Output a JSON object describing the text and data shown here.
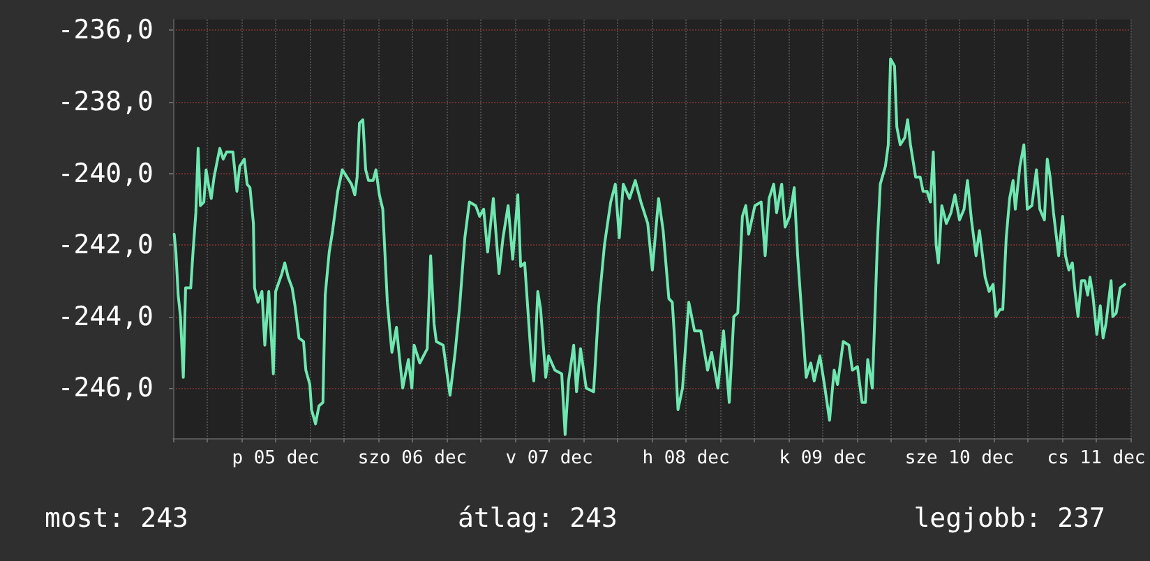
{
  "chart_data": {
    "type": "line",
    "color": "#6ee7b0",
    "grid": true,
    "marker": "none",
    "line_style": "solid",
    "xlim": [
      "--12-04T18:00",
      "--12-11T18:00"
    ],
    "ylim": [
      -247.4,
      -235.7
    ],
    "xticks": [
      {
        "value": "--12-04T18:00",
        "label": null
      },
      {
        "value": "--12-05T00:00",
        "label": null
      },
      {
        "value": "--12-05T06:00",
        "label": null
      },
      {
        "value": "--12-05T12:00",
        "label": "p 05 dec"
      },
      {
        "value": "--12-05T18:00",
        "label": null
      },
      {
        "value": "--12-06T00:00",
        "label": null
      },
      {
        "value": "--12-06T06:00",
        "label": null
      },
      {
        "value": "--12-06T12:00",
        "label": "szo 06 dec"
      },
      {
        "value": "--12-06T18:00",
        "label": null
      },
      {
        "value": "--12-07T00:00",
        "label": null
      },
      {
        "value": "--12-07T06:00",
        "label": null
      },
      {
        "value": "--12-07T12:00",
        "label": "v 07 dec"
      },
      {
        "value": "--12-07T18:00",
        "label": null
      },
      {
        "value": "--12-08T00:00",
        "label": null
      },
      {
        "value": "--12-08T06:00",
        "label": null
      },
      {
        "value": "--12-08T12:00",
        "label": "h 08 dec"
      },
      {
        "value": "--12-08T18:00",
        "label": null
      },
      {
        "value": "--12-09T00:00",
        "label": null
      },
      {
        "value": "--12-09T06:00",
        "label": null
      },
      {
        "value": "--12-09T12:00",
        "label": "k 09 dec"
      },
      {
        "value": "--12-09T18:00",
        "label": null
      },
      {
        "value": "--12-10T00:00",
        "label": null
      },
      {
        "value": "--12-10T06:00",
        "label": null
      },
      {
        "value": "--12-10T12:00",
        "label": "sze 10 dec"
      },
      {
        "value": "--12-10T18:00",
        "label": null
      },
      {
        "value": "--12-11T00:00",
        "label": null
      },
      {
        "value": "--12-11T06:00",
        "label": null
      },
      {
        "value": "--12-11T12:00",
        "label": "cs 11 dec"
      },
      {
        "value": "--12-11T18:00",
        "label": null
      }
    ],
    "yticks": [
      {
        "value": -236,
        "label": "-236,0"
      },
      {
        "value": -238,
        "label": "-238,0"
      },
      {
        "value": -240,
        "label": "-240,0"
      },
      {
        "value": -242,
        "label": "-242,0"
      },
      {
        "value": -244,
        "label": "-244,0"
      },
      {
        "value": -246,
        "label": "-246,0"
      }
    ],
    "x": [
      "--12-04T18:12",
      "--12-04T18:30",
      "--12-04T18:54",
      "--12-04T19:18",
      "--12-04T19:48",
      "--12-04T20:12",
      "--12-04T21:06",
      "--12-04T21:30",
      "--12-04T22:00",
      "--12-04T22:24",
      "--12-04T22:48",
      "--12-04T23:24",
      "--12-04T23:48",
      "--12-05T00:12",
      "--12-05T00:42",
      "--12-05T01:12",
      "--12-05T02:12",
      "--12-05T02:48",
      "--12-05T03:24",
      "--12-05T04:30",
      "--12-05T05:12",
      "--12-05T05:42",
      "--12-05T06:30",
      "--12-05T07:00",
      "--12-05T07:30",
      "--12-05T08:06",
      "--12-05T08:18",
      "--12-05T08:54",
      "--12-05T09:36",
      "--12-05T10:06",
      "--12-05T10:48",
      "--12-05T11:36",
      "--12-05T12:00",
      "--12-05T13:06",
      "--12-05T13:36",
      "--12-05T14:12",
      "--12-05T14:54",
      "--12-05T15:24",
      "--12-05T16:06",
      "--12-05T16:54",
      "--12-05T17:18",
      "--12-05T18:00",
      "--12-05T18:18",
      "--12-05T19:00",
      "--12-05T19:36",
      "--12-05T20:18",
      "--12-05T20:42",
      "--12-05T21:24",
      "--12-05T22:00",
      "--12-05T22:54",
      "--12-05T23:42",
      "--12-06T00:30",
      "--12-06T01:18",
      "--12-06T01:54",
      "--12-06T02:18",
      "--12-06T02:42",
      "--12-06T03:18",
      "--12-06T03:48",
      "--12-06T04:18",
      "--12-06T05:06",
      "--12-06T05:36",
      "--12-06T06:12",
      "--12-06T06:48",
      "--12-06T07:36",
      "--12-06T08:24",
      "--12-06T09:12",
      "--12-06T09:42",
      "--12-06T10:18",
      "--12-06T11:18",
      "--12-06T11:54",
      "--12-06T12:18",
      "--12-06T13:18",
      "--12-06T14:36",
      "--12-06T15:12",
      "--12-06T15:48",
      "--12-06T16:12",
      "--12-06T17:24",
      "--12-06T18:36",
      "--12-06T19:30",
      "--12-06T20:18",
      "--12-06T21:12",
      "--12-06T22:00",
      "--12-06T23:06",
      "--12-06T23:48",
      "--12-07T00:30",
      "--12-07T01:12",
      "--12-07T02:12",
      "--12-07T03:12",
      "--12-07T03:54",
      "--12-07T04:48",
      "--12-07T05:36",
      "--12-07T06:30",
      "--12-07T07:00",
      "--12-07T07:42",
      "--12-07T08:54",
      "--12-07T09:18",
      "--12-07T10:00",
      "--12-07T10:30",
      "--12-07T11:24",
      "--12-07T11:54",
      "--12-07T13:00",
      "--12-07T14:12",
      "--12-07T14:48",
      "--12-07T15:24",
      "--12-07T16:18",
      "--12-07T16:48",
      "--12-07T17:30",
      "--12-07T18:30",
      "--12-07T19:48",
      "--12-07T20:42",
      "--12-07T21:42",
      "--12-07T22:48",
      "--12-07T23:36",
      "--12-08T00:18",
      "--12-08T01:00",
      "--12-08T02:06",
      "--12-08T03:06",
      "--12-08T04:06",
      "--12-08T05:18",
      "--12-08T06:06",
      "--12-08T07:12",
      "--12-08T08:00",
      "--12-08T09:00",
      "--12-08T09:36",
      "--12-08T10:00",
      "--12-08T10:36",
      "--12-08T11:24",
      "--12-08T12:30",
      "--12-08T13:30",
      "--12-08T14:36",
      "--12-08T15:48",
      "--12-08T16:30",
      "--12-08T17:36",
      "--12-08T18:36",
      "--12-08T19:36",
      "--12-08T20:24",
      "--12-08T21:06",
      "--12-08T21:54",
      "--12-08T22:30",
      "--12-08T23:00",
      "--12-09T00:06",
      "--12-09T01:12",
      "--12-09T01:54",
      "--12-09T02:36",
      "--12-09T03:24",
      "--12-09T03:54",
      "--12-09T04:48",
      "--12-09T05:24",
      "--12-09T06:12",
      "--12-09T07:00",
      "--12-09T07:36",
      "--12-09T08:42",
      "--12-09T09:06",
      "--12-09T09:54",
      "--12-09T10:30",
      "--12-09T11:30",
      "--12-09T12:18",
      "--12-09T13:12",
      "--12-09T14:00",
      "--12-09T14:36",
      "--12-09T15:36",
      "--12-09T16:36",
      "--12-09T17:12",
      "--12-09T18:06",
      "--12-09T18:54",
      "--12-09T19:30",
      "--12-09T19:54",
      "--12-09T20:42",
      "--12-09T21:06",
      "--12-09T21:36",
      "--12-09T22:06",
      "--12-09T23:00",
      "--12-09T23:30",
      "--12-09T23:54",
      "--12-10T00:36",
      "--12-10T01:00",
      "--12-10T01:36",
      "--12-10T02:24",
      "--12-10T02:54",
      "--12-10T03:24",
      "--12-10T04:18",
      "--12-10T05:06",
      "--12-10T05:36",
      "--12-10T06:18",
      "--12-10T06:54",
      "--12-10T07:24",
      "--12-10T07:54",
      "--12-10T08:18",
      "--12-10T08:54",
      "--12-10T09:42",
      "--12-10T10:30",
      "--12-10T11:12",
      "--12-10T12:00",
      "--12-10T12:48",
      "--12-10T13:24",
      "--12-10T14:06",
      "--12-10T14:54",
      "--12-10T15:30",
      "--12-10T16:30",
      "--12-10T17:12",
      "--12-10T17:54",
      "--12-10T18:24",
      "--12-10T19:06",
      "--12-10T19:36",
      "--12-10T20:12",
      "--12-10T20:48",
      "--12-10T21:24",
      "--12-10T21:48",
      "--12-10T22:36",
      "--12-10T23:18",
      "--12-10T23:54",
      "--12-11T00:42",
      "--12-11T01:30",
      "--12-11T02:06",
      "--12-11T02:54",
      "--12-11T03:24",
      "--12-11T03:54",
      "--12-11T04:30",
      "--12-11T05:24",
      "--12-11T06:06",
      "--12-11T06:36",
      "--12-11T07:12",
      "--12-11T07:48",
      "--12-11T08:12",
      "--12-11T08:48",
      "--12-11T09:24",
      "--12-11T10:00",
      "--12-11T10:30",
      "--12-11T10:54",
      "--12-11T11:24",
      "--12-11T12:06",
      "--12-11T12:42",
      "--12-11T13:12",
      "--12-11T13:42",
      "--12-11T14:36",
      "--12-11T14:54",
      "--12-11T15:30",
      "--12-11T16:12",
      "--12-11T17:00"
    ],
    "values": [
      -241.7,
      -242.2,
      -243.4,
      -244.0,
      -245.7,
      -243.2,
      -243.2,
      -242.2,
      -241.1,
      -239.3,
      -240.9,
      -240.8,
      -239.9,
      -240.3,
      -240.7,
      -240.1,
      -239.3,
      -239.6,
      -239.4,
      -239.4,
      -240.5,
      -239.8,
      -239.6,
      -240.3,
      -240.4,
      -241.4,
      -243.2,
      -243.6,
      -243.3,
      -244.8,
      -243.3,
      -245.6,
      -243.3,
      -242.8,
      -242.5,
      -242.9,
      -243.2,
      -243.7,
      -244.6,
      -244.7,
      -245.5,
      -245.9,
      -246.6,
      -247.0,
      -246.5,
      -246.4,
      -243.4,
      -242.2,
      -241.6,
      -240.5,
      -239.9,
      -240.1,
      -240.3,
      -240.6,
      -240.1,
      -238.6,
      -238.5,
      -239.9,
      -240.2,
      -240.2,
      -239.9,
      -240.6,
      -241.0,
      -243.6,
      -245.0,
      -244.3,
      -245.1,
      -246.0,
      -245.2,
      -246.0,
      -244.8,
      -245.3,
      -244.9,
      -242.3,
      -244.2,
      -244.7,
      -244.8,
      -246.2,
      -245.0,
      -243.7,
      -241.8,
      -240.8,
      -240.9,
      -241.2,
      -241.0,
      -242.2,
      -240.7,
      -242.8,
      -241.8,
      -240.9,
      -242.4,
      -240.6,
      -242.6,
      -242.5,
      -245.3,
      -245.8,
      -243.3,
      -243.8,
      -245.7,
      -245.1,
      -245.5,
      -245.6,
      -247.3,
      -245.8,
      -244.8,
      -246.1,
      -244.9,
      -246.0,
      -246.1,
      -243.7,
      -242.0,
      -240.8,
      -240.3,
      -241.8,
      -240.3,
      -240.7,
      -240.2,
      -240.8,
      -241.4,
      -242.7,
      -240.7,
      -241.6,
      -243.5,
      -243.6,
      -244.6,
      -246.6,
      -246.0,
      -243.6,
      -244.4,
      -244.4,
      -245.5,
      -245.0,
      -246.0,
      -244.4,
      -246.4,
      -244.0,
      -243.9,
      -241.2,
      -240.9,
      -241.7,
      -240.9,
      -240.8,
      -242.3,
      -240.7,
      -240.3,
      -241.1,
      -240.3,
      -241.5,
      -241.2,
      -240.4,
      -242.3,
      -244.8,
      -245.7,
      -245.3,
      -245.8,
      -245.1,
      -245.9,
      -246.9,
      -245.5,
      -245.9,
      -244.7,
      -244.8,
      -245.5,
      -245.4,
      -246.4,
      -246.4,
      -245.2,
      -246.0,
      -244.2,
      -241.9,
      -240.3,
      -239.8,
      -239.2,
      -236.8,
      -237.0,
      -238.7,
      -239.2,
      -239.0,
      -238.5,
      -239.2,
      -240.1,
      -240.1,
      -240.5,
      -240.5,
      -240.8,
      -239.4,
      -242.0,
      -242.5,
      -240.9,
      -241.4,
      -241.1,
      -240.6,
      -241.3,
      -241.0,
      -240.2,
      -241.3,
      -242.3,
      -241.6,
      -242.9,
      -243.3,
      -243.1,
      -244.0,
      -243.8,
      -243.8,
      -241.8,
      -240.7,
      -240.2,
      -241.0,
      -239.8,
      -239.2,
      -241.0,
      -240.9,
      -239.9,
      -241.0,
      -241.3,
      -239.6,
      -240.1,
      -241.1,
      -242.3,
      -241.2,
      -242.3,
      -242.7,
      -242.5,
      -243.2,
      -244.0,
      -243.0,
      -243.0,
      -243.4,
      -242.9,
      -243.4,
      -244.5,
      -243.7,
      -244.6,
      -244.2,
      -243.0,
      -244.0,
      -243.9,
      -243.2,
      -243.1
    ],
    "annotations": [
      "most: 243",
      "átlag: 243",
      "legjobb: 237"
    ]
  }
}
